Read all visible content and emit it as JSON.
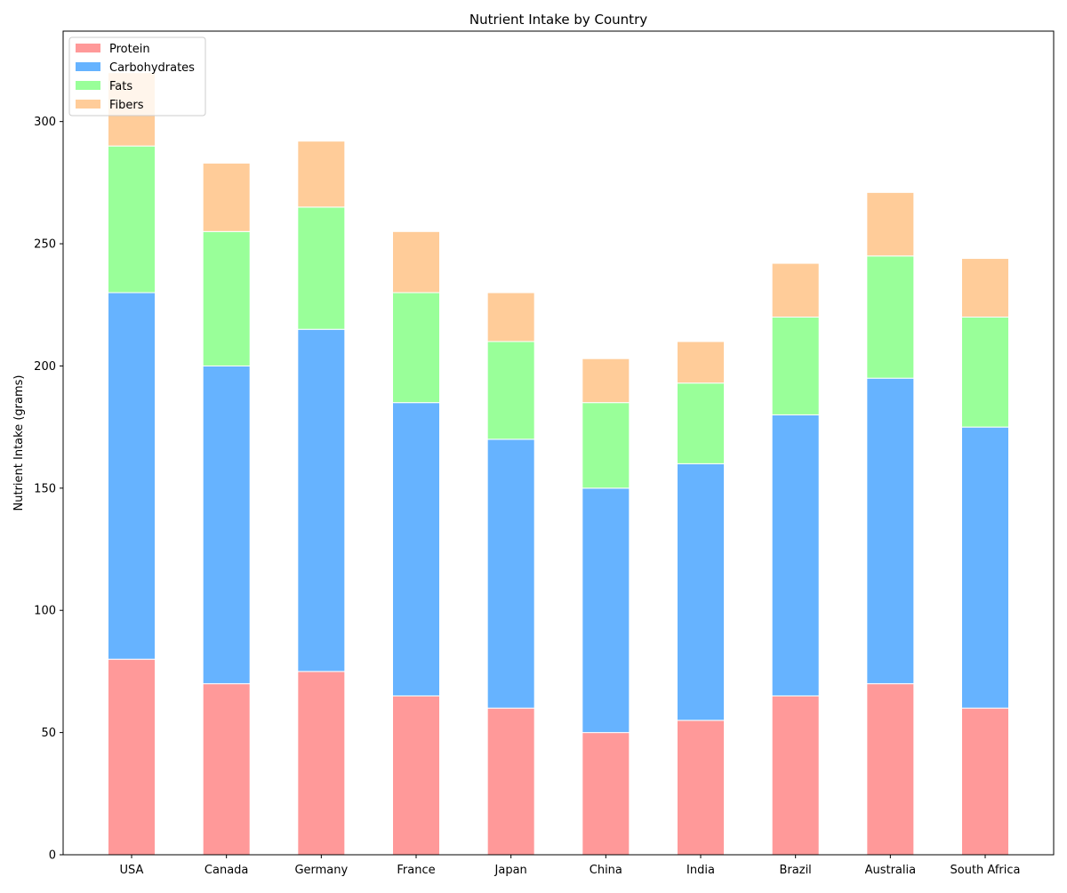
{
  "chart_data": {
    "type": "bar",
    "stacked": true,
    "title": "Nutrient Intake by Country",
    "xlabel": "",
    "ylabel": "Nutrient Intake (grams)",
    "ylim": [
      0,
      337
    ],
    "yticks": [
      0,
      50,
      100,
      150,
      200,
      250,
      300
    ],
    "grid": false,
    "legend_position": "top-left",
    "categories": [
      "USA",
      "Canada",
      "Germany",
      "France",
      "Japan",
      "China",
      "India",
      "Brazil",
      "Australia",
      "South Africa"
    ],
    "series": [
      {
        "name": "Protein",
        "color": "#ff9999",
        "values": [
          80,
          70,
          75,
          65,
          60,
          50,
          55,
          65,
          70,
          60
        ]
      },
      {
        "name": "Carbohydrates",
        "color": "#66b3ff",
        "values": [
          150,
          130,
          140,
          120,
          110,
          100,
          105,
          115,
          125,
          115
        ]
      },
      {
        "name": "Fats",
        "color": "#99ff99",
        "values": [
          60,
          55,
          50,
          45,
          40,
          35,
          33,
          40,
          50,
          45
        ]
      },
      {
        "name": "Fibers",
        "color": "#ffcc99",
        "values": [
          30,
          28,
          27,
          25,
          20,
          18,
          17,
          22,
          26,
          24
        ]
      }
    ]
  }
}
